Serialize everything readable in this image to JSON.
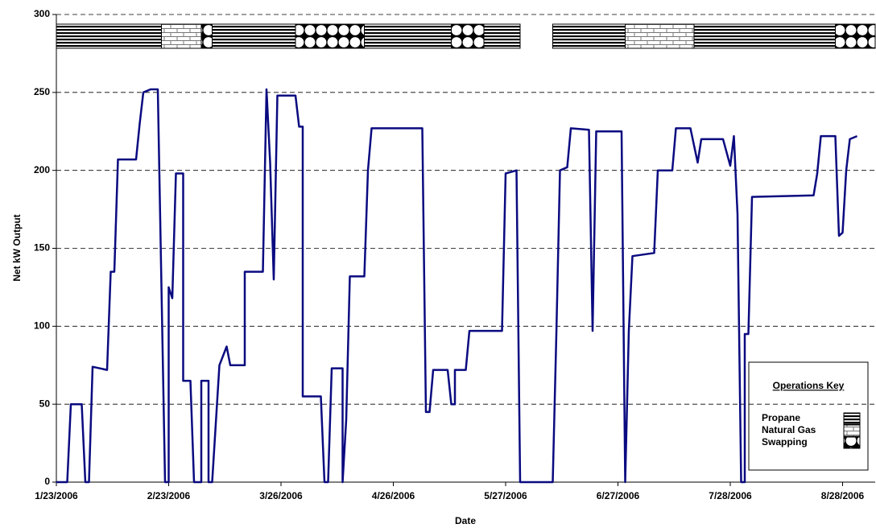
{
  "chart_data": {
    "type": "line",
    "x_label": "Date",
    "y_label": "Net kW Output",
    "color": "#0a0a80",
    "grid": true,
    "xlim": [
      "2006-01-23",
      "2006-09-06"
    ],
    "ylim": [
      0,
      300
    ],
    "yticks": [
      0,
      50,
      100,
      150,
      200,
      250,
      300
    ],
    "xticks": [
      {
        "value": "2006-01-23",
        "label": "1/23/2006"
      },
      {
        "value": "2006-02-23",
        "label": "2/23/2006"
      },
      {
        "value": "2006-03-26",
        "label": "3/26/2006"
      },
      {
        "value": "2006-04-26",
        "label": "4/26/2006"
      },
      {
        "value": "2006-05-27",
        "label": "5/27/2006"
      },
      {
        "value": "2006-06-27",
        "label": "6/27/2006"
      },
      {
        "value": "2006-07-28",
        "label": "7/28/2006"
      },
      {
        "value": "2006-08-28",
        "label": "8/28/2006"
      }
    ],
    "x": [
      "2006-01-23",
      "2006-01-26",
      "2006-01-27",
      "2006-01-30",
      "2006-01-31",
      "2006-02-01",
      "2006-02-02",
      "2006-02-06",
      "2006-02-07",
      "2006-02-08",
      "2006-02-09",
      "2006-02-14",
      "2006-02-15",
      "2006-02-16",
      "2006-02-18",
      "2006-02-20",
      "2006-02-22",
      "2006-02-23",
      "2006-02-23",
      "2006-02-24",
      "2006-02-25",
      "2006-02-27",
      "2006-02-27",
      "2006-03-01",
      "2006-03-02",
      "2006-03-04",
      "2006-03-04",
      "2006-03-06",
      "2006-03-06",
      "2006-03-07",
      "2006-03-09",
      "2006-03-11",
      "2006-03-12",
      "2006-03-16",
      "2006-03-16",
      "2006-03-21",
      "2006-03-22",
      "2006-03-23",
      "2006-03-24",
      "2006-03-25",
      "2006-03-30",
      "2006-03-31",
      "2006-04-01",
      "2006-04-01",
      "2006-04-06",
      "2006-04-07",
      "2006-04-08",
      "2006-04-09",
      "2006-04-12",
      "2006-04-12",
      "2006-04-13",
      "2006-04-14",
      "2006-04-18",
      "2006-04-19",
      "2006-04-20",
      "2006-05-04",
      "2006-05-05",
      "2006-05-06",
      "2006-05-07",
      "2006-05-11",
      "2006-05-12",
      "2006-05-13",
      "2006-05-13",
      "2006-05-16",
      "2006-05-17",
      "2006-05-26",
      "2006-05-27",
      "2006-05-30",
      "2006-05-31",
      "2006-06-09",
      "2006-06-10",
      "2006-06-11",
      "2006-06-13",
      "2006-06-14",
      "2006-06-19",
      "2006-06-20",
      "2006-06-21",
      "2006-06-28",
      "2006-06-29",
      "2006-06-30",
      "2006-07-01",
      "2006-07-07",
      "2006-07-08",
      "2006-07-12",
      "2006-07-13",
      "2006-07-17",
      "2006-07-19",
      "2006-07-20",
      "2006-07-26",
      "2006-07-28",
      "2006-07-29",
      "2006-07-30",
      "2006-07-31",
      "2006-08-01",
      "2006-08-01",
      "2006-08-02",
      "2006-08-03",
      "2006-08-20",
      "2006-08-21",
      "2006-08-22",
      "2006-08-26",
      "2006-08-27",
      "2006-08-28",
      "2006-08-29",
      "2006-08-30",
      "2006-09-01"
    ],
    "values": [
      0,
      0,
      50,
      50,
      0,
      0,
      74,
      72,
      135,
      135,
      207,
      207,
      230,
      250,
      252,
      252,
      0,
      0,
      125,
      118,
      198,
      198,
      65,
      65,
      0,
      0,
      65,
      65,
      0,
      0,
      75,
      87,
      75,
      75,
      135,
      135,
      252,
      205,
      130,
      248,
      248,
      228,
      228,
      55,
      55,
      0,
      0,
      73,
      73,
      0,
      40,
      132,
      132,
      200,
      227,
      227,
      45,
      45,
      72,
      72,
      50,
      50,
      72,
      72,
      97,
      97,
      198,
      200,
      0,
      0,
      95,
      200,
      202,
      227,
      226,
      97,
      225,
      225,
      0,
      97,
      145,
      147,
      200,
      200,
      227,
      227,
      205,
      220,
      220,
      203,
      222,
      172,
      0,
      0,
      95,
      95,
      183,
      184,
      198,
      222,
      222,
      158,
      160,
      200,
      220,
      222
    ],
    "operations": [
      {
        "start": "2006-01-23",
        "end": "2006-02-21",
        "mode": "Propane"
      },
      {
        "start": "2006-02-21",
        "end": "2006-03-04",
        "mode": "Natural Gas"
      },
      {
        "start": "2006-03-04",
        "end": "2006-03-07",
        "mode": "Swapping"
      },
      {
        "start": "2006-03-07",
        "end": "2006-03-30",
        "mode": "Propane"
      },
      {
        "start": "2006-03-30",
        "end": "2006-04-18",
        "mode": "Swapping"
      },
      {
        "start": "2006-04-18",
        "end": "2006-05-12",
        "mode": "Propane"
      },
      {
        "start": "2006-05-12",
        "end": "2006-05-21",
        "mode": "Swapping"
      },
      {
        "start": "2006-05-21",
        "end": "2006-05-31",
        "mode": "Propane"
      },
      {
        "start": "2006-06-09",
        "end": "2006-06-29",
        "mode": "Propane"
      },
      {
        "start": "2006-06-29",
        "end": "2006-07-18",
        "mode": "Natural Gas"
      },
      {
        "start": "2006-07-18",
        "end": "2006-08-26",
        "mode": "Propane"
      },
      {
        "start": "2006-08-26",
        "end": "2006-09-06",
        "mode": "Swapping"
      }
    ],
    "legend": {
      "title": "Operations Key",
      "items": [
        "Propane",
        "Natural Gas",
        "Swapping"
      ]
    }
  }
}
